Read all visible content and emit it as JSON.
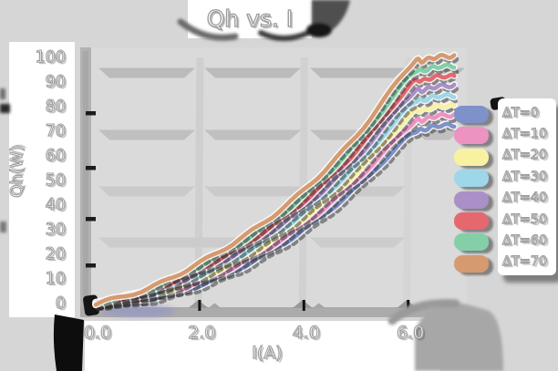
{
  "title": "Qh vs. I",
  "axes": {
    "x_label": "I(A)",
    "y_label": "Qh(W)",
    "x_ticks": [
      "0.0",
      "2.0",
      "4.0",
      "6.0"
    ],
    "y_ticks": [
      "100",
      "90",
      "80",
      "70",
      "60",
      "50",
      "40",
      "30",
      "20",
      "10",
      "0"
    ]
  },
  "legend": {
    "items": [
      {
        "label": "ΔT=0",
        "color": "#7e91c8"
      },
      {
        "label": "ΔT=10",
        "color": "#ec93c2"
      },
      {
        "label": "ΔT=20",
        "color": "#f8f1a2"
      },
      {
        "label": "ΔT=30",
        "color": "#9ed7e7"
      },
      {
        "label": "ΔT=40",
        "color": "#aa90c7"
      },
      {
        "label": "ΔT=50",
        "color": "#e5686f"
      },
      {
        "label": "ΔT=60",
        "color": "#84cfa8"
      },
      {
        "label": "ΔT=70",
        "color": "#d69a70"
      }
    ]
  },
  "chart_data": {
    "type": "line",
    "title": "Qh vs. I",
    "xlabel": "I(A)",
    "ylabel": "Qh(W)",
    "x": [
      0,
      1,
      2,
      3,
      4,
      5,
      6
    ],
    "xlim": [
      0,
      7
    ],
    "ylim": [
      0,
      100
    ],
    "x_tick_values": [
      0,
      2,
      4,
      6
    ],
    "y_tick_values": [
      0,
      10,
      20,
      30,
      40,
      50,
      60,
      70,
      80,
      90,
      100
    ],
    "grid": true,
    "legend_position": "right",
    "series": [
      {
        "name": "ΔT=0",
        "color": "#7e91c8",
        "values": [
          0,
          1.9,
          7.6,
          17.0,
          30.2,
          47.2,
          68.0
        ]
      },
      {
        "name": "ΔT=10",
        "color": "#ec93c2",
        "values": [
          0,
          2.5,
          8.9,
          18.8,
          32.5,
          50.2,
          72.0
        ]
      },
      {
        "name": "ΔT=20",
        "color": "#f8f1a2",
        "values": [
          0,
          3.1,
          10.2,
          20.6,
          34.8,
          53.2,
          76.0
        ]
      },
      {
        "name": "ΔT=30",
        "color": "#9ed7e7",
        "values": [
          0,
          3.7,
          11.5,
          22.4,
          37.1,
          56.2,
          80.0
        ]
      },
      {
        "name": "ΔT=40",
        "color": "#aa90c7",
        "values": [
          0,
          4.3,
          12.8,
          24.2,
          39.4,
          59.2,
          84.0
        ]
      },
      {
        "name": "ΔT=50",
        "color": "#e5686f",
        "values": [
          0,
          4.9,
          14.1,
          26.0,
          41.7,
          62.2,
          88.0
        ]
      },
      {
        "name": "ΔT=60",
        "color": "#84cfa8",
        "values": [
          0,
          5.5,
          15.4,
          27.8,
          44.0,
          65.2,
          92.0
        ]
      },
      {
        "name": "ΔT=70",
        "color": "#d69a70",
        "values": [
          0,
          6.1,
          16.7,
          29.6,
          46.3,
          68.2,
          96.0
        ]
      }
    ]
  }
}
